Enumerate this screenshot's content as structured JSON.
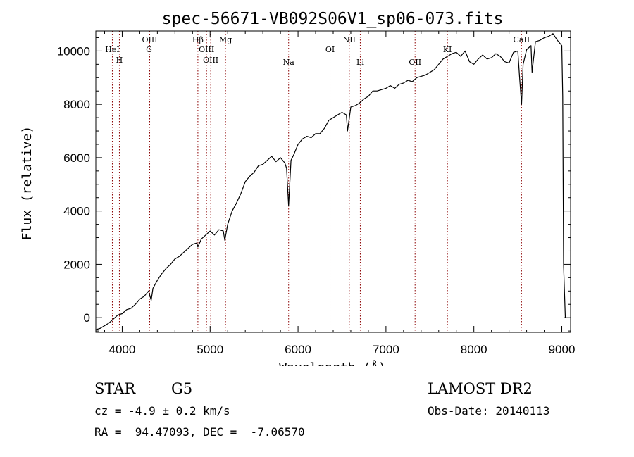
{
  "chart_data": {
    "type": "line",
    "title": "spec-56671-VB092S06V1_sp06-073.fits",
    "xlabel": "Wavelength (Å)",
    "ylabel": "Flux (relative)",
    "xlim": [
      3700,
      9100
    ],
    "ylim": [
      -550,
      10750
    ],
    "xticks": [
      4000,
      5000,
      6000,
      7000,
      8000,
      9000
    ],
    "yticks": [
      0,
      2000,
      4000,
      6000,
      8000,
      10000
    ],
    "xtick_labels": [
      "4000",
      "5000",
      "6000",
      "7000",
      "8000",
      "9000"
    ],
    "ytick_labels": [
      "0",
      "2000",
      "4000",
      "6000",
      "8000",
      "10000"
    ],
    "series": [
      {
        "x": [
          3700,
          3750,
          3800,
          3850,
          3900,
          3950,
          4000,
          4050,
          4100,
          4150,
          4200,
          4250,
          4300,
          4330,
          4350,
          4400,
          4450,
          4500,
          4550,
          4600,
          4650,
          4700,
          4750,
          4800,
          4850,
          4861,
          4900,
          4950,
          5000,
          5050,
          5100,
          5150,
          5167,
          5200,
          5250,
          5300,
          5350,
          5400,
          5450,
          5500,
          5550,
          5600,
          5650,
          5700,
          5750,
          5800,
          5850,
          5870,
          5893,
          5920,
          5950,
          6000,
          6050,
          6100,
          6150,
          6200,
          6250,
          6300,
          6350,
          6400,
          6450,
          6500,
          6550,
          6563,
          6600,
          6650,
          6700,
          6750,
          6800,
          6850,
          6900,
          6950,
          7000,
          7050,
          7100,
          7150,
          7200,
          7250,
          7300,
          7350,
          7400,
          7450,
          7500,
          7550,
          7600,
          7650,
          7700,
          7750,
          7800,
          7850,
          7900,
          7950,
          8000,
          8050,
          8100,
          8150,
          8200,
          8250,
          8300,
          8350,
          8400,
          8450,
          8500,
          8520,
          8542,
          8560,
          8600,
          8650,
          8662,
          8700,
          8750,
          8800,
          8850,
          8900,
          8950,
          9000,
          9010,
          9020,
          9040
        ],
        "y": [
          -450,
          -400,
          -300,
          -200,
          -50,
          100,
          150,
          300,
          350,
          500,
          700,
          800,
          1000,
          650,
          1100,
          1400,
          1650,
          1850,
          2000,
          2200,
          2300,
          2450,
          2600,
          2750,
          2800,
          2650,
          2950,
          3100,
          3250,
          3100,
          3300,
          3250,
          2900,
          3500,
          4000,
          4300,
          4650,
          5100,
          5300,
          5450,
          5700,
          5750,
          5900,
          6050,
          5850,
          6000,
          5800,
          5600,
          4200,
          5900,
          6100,
          6500,
          6700,
          6800,
          6750,
          6900,
          6900,
          7100,
          7400,
          7500,
          7600,
          7700,
          7600,
          7000,
          7900,
          7950,
          8050,
          8200,
          8300,
          8500,
          8500,
          8550,
          8600,
          8700,
          8600,
          8750,
          8800,
          8900,
          8850,
          9000,
          9050,
          9100,
          9200,
          9300,
          9500,
          9700,
          9800,
          9900,
          9950,
          9800,
          10000,
          9600,
          9500,
          9700,
          9850,
          9700,
          9750,
          9900,
          9800,
          9600,
          9550,
          9950,
          10000,
          9000,
          8000,
          9500,
          10050,
          10200,
          9200,
          10350,
          10400,
          10500,
          10550,
          10650,
          10400,
          10200,
          8300,
          2000,
          0
        ]
      }
    ],
    "lines": [
      {
        "label": "HeI",
        "x": 3888
      },
      {
        "label": "H",
        "x": 3968
      },
      {
        "label": "OIII",
        "x": 4313
      },
      {
        "label": "G",
        "x": 4305
      },
      {
        "label": "Hβ",
        "x": 4861
      },
      {
        "label": "OIII",
        "x": 4959
      },
      {
        "label": "OIII",
        "x": 5007
      },
      {
        "label": "Mg",
        "x": 5175
      },
      {
        "label": "Na",
        "x": 5893
      },
      {
        "label": "OI",
        "x": 6364
      },
      {
        "label": "NII",
        "x": 6583
      },
      {
        "label": "Li",
        "x": 6708
      },
      {
        "label": "OII",
        "x": 7331
      },
      {
        "label": "KI",
        "x": 7699
      },
      {
        "label": "CaII",
        "x": 8542
      }
    ]
  },
  "info": {
    "object_class": "STAR",
    "subclass": "G5",
    "survey": "LAMOST DR2",
    "cz": "cz = -4.9 ± 0.2 km/s",
    "obs_date": "Obs-Date: 20140113",
    "coords": "RA =  94.47093, DEC =  -7.06570"
  },
  "colors": {
    "line": "#8b0000",
    "spectrum": "#000000"
  }
}
